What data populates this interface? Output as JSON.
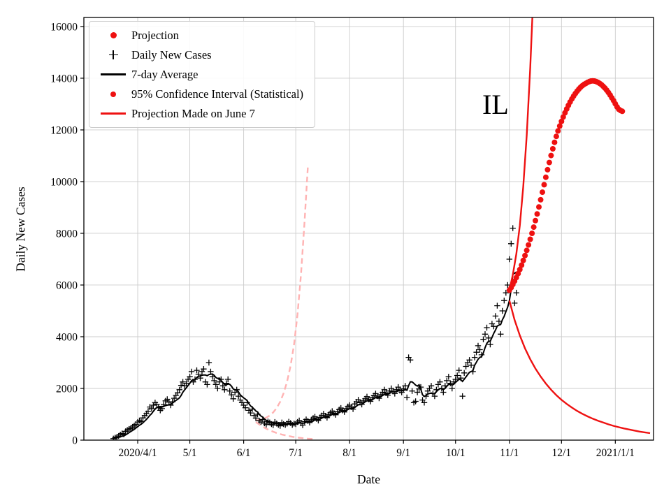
{
  "chart_data": {
    "type": "line",
    "title": "",
    "xlabel": "Date",
    "ylabel": "Daily New Cases",
    "annotation": "IL",
    "grid": true,
    "legend_position": "upper left",
    "xlim": [
      "2020-03-01",
      "2021-01-23"
    ],
    "ylim": [
      0,
      16350
    ],
    "x_ticks": [
      {
        "date": "2020-04-01",
        "label": "2020/4/1"
      },
      {
        "date": "2020-05-01",
        "label": "5/1"
      },
      {
        "date": "2020-06-01",
        "label": "6/1"
      },
      {
        "date": "2020-07-01",
        "label": "7/1"
      },
      {
        "date": "2020-08-01",
        "label": "8/1"
      },
      {
        "date": "2020-09-01",
        "label": "9/1"
      },
      {
        "date": "2020-10-01",
        "label": "10/1"
      },
      {
        "date": "2020-11-01",
        "label": "11/1"
      },
      {
        "date": "2020-12-01",
        "label": "12/1"
      },
      {
        "date": "2021-01-01",
        "label": "2021/1/1"
      }
    ],
    "y_ticks": [
      0,
      2000,
      4000,
      6000,
      8000,
      10000,
      12000,
      14000,
      16000
    ],
    "colors": {
      "projection": "#ee1111",
      "daily_cases": "#000000",
      "average": "#000000",
      "june_projection": "#ffb3b3",
      "grid": "#cccccc"
    },
    "legend": [
      {
        "label": "Projection",
        "marker": "red-dot-large"
      },
      {
        "label": "Daily New Cases",
        "marker": "black-plus"
      },
      {
        "label": "7-day Average",
        "marker": "black-line"
      },
      {
        "label": "95% Confidence Interval (Statistical)",
        "marker": "red-dot-small"
      },
      {
        "label": "Projection Made on June 7",
        "marker": "red-line"
      }
    ],
    "series": {
      "daily_new_cases": {
        "type": "scatter-plus",
        "start": "2020-03-18",
        "values": [
          60,
          95,
          120,
          160,
          210,
          260,
          230,
          340,
          390,
          430,
          460,
          510,
          560,
          610,
          700,
          760,
          715,
          860,
          950,
          1030,
          1120,
          1280,
          1220,
          1350,
          1450,
          1380,
          1250,
          1150,
          1220,
          1380,
          1520,
          1580,
          1470,
          1350,
          1480,
          1620,
          1730,
          1830,
          1950,
          2120,
          2250,
          2100,
          2200,
          2350,
          2450,
          2650,
          2250,
          2350,
          2700,
          2550,
          2400,
          2650,
          2750,
          2250,
          2150,
          3000,
          2650,
          2450,
          2300,
          2150,
          2000,
          2250,
          2350,
          2100,
          1950,
          2200,
          2350,
          1900,
          1750,
          1600,
          1850,
          1950,
          1700,
          1550,
          1450,
          1350,
          1250,
          1450,
          1150,
          1050,
          1200,
          950,
          850,
          1000,
          750,
          700,
          800,
          650,
          600,
          720,
          680,
          620,
          580,
          700,
          640,
          590,
          550,
          680,
          620,
          590,
          640,
          710,
          660,
          590,
          640,
          620,
          700,
          760,
          650,
          580,
          720,
          800,
          740,
          680,
          790,
          850,
          900,
          820,
          760,
          880,
          950,
          1020,
          940,
          870,
          990,
          1060,
          1120,
          1040,
          980,
          1100,
          1180,
          1240,
          1150,
          1090,
          1220,
          1300,
          1350,
          1280,
          1200,
          1400,
          1480,
          1560,
          1450,
          1380,
          1520,
          1600,
          1680,
          1580,
          1500,
          1640,
          1720,
          1800,
          1700,
          1620,
          1760,
          1850,
          1950,
          1820,
          1740,
          1900,
          2000,
          1880,
          1800,
          1950,
          2050,
          1920,
          1850,
          1980,
          2100,
          1650,
          3200,
          3100,
          1900,
          1450,
          1500,
          1850,
          1980,
          2050,
          1550,
          1450,
          1700,
          1900,
          2000,
          2100,
          1800,
          1700,
          1950,
          2150,
          2250,
          2000,
          1850,
          2100,
          2300,
          2450,
          2200,
          2000,
          2250,
          2350,
          2500,
          2700,
          2400,
          1700,
          2600,
          2850,
          3000,
          3100,
          2900,
          2650,
          3200,
          3400,
          3650,
          3500,
          3300,
          3900,
          4100,
          4350,
          3950,
          3700,
          4500,
          4400,
          4800,
          5200,
          4600,
          4100,
          5000,
          5400,
          5700,
          6000,
          7000,
          7600,
          8200,
          5300,
          5700
        ]
      },
      "seven_day_average": {
        "type": "line",
        "derived_from": "daily_new_cases",
        "window": 7
      },
      "projection": {
        "type": "scatter-dot",
        "start": "2020-11-01",
        "values": [
          5800,
          5900,
          6020,
          6150,
          6290,
          6440,
          6600,
          6770,
          6950,
          7140,
          7340,
          7550,
          7770,
          8000,
          8240,
          8490,
          8750,
          9020,
          9300,
          9590,
          9880,
          10170,
          10460,
          10740,
          11010,
          11270,
          11520,
          11750,
          11960,
          12150,
          12330,
          12500,
          12660,
          12810,
          12950,
          13080,
          13200,
          13310,
          13410,
          13500,
          13580,
          13650,
          13710,
          13760,
          13800,
          13840,
          13870,
          13890,
          13900,
          13890,
          13870,
          13840,
          13800,
          13750,
          13690,
          13620,
          13540,
          13450,
          13350,
          13240,
          13130,
          13010,
          12890,
          12800,
          12750,
          12720
        ]
      },
      "ci_upper": {
        "type": "line",
        "points": [
          [
            "2020-11-01",
            5800
          ],
          [
            "2020-11-03",
            6400
          ],
          [
            "2020-11-05",
            7200
          ],
          [
            "2020-11-07",
            8300
          ],
          [
            "2020-11-09",
            9800
          ],
          [
            "2020-11-11",
            11800
          ],
          [
            "2020-11-13",
            14400
          ],
          [
            "2020-11-15",
            17600
          ]
        ]
      },
      "ci_lower": {
        "type": "line",
        "points": [
          [
            "2020-11-01",
            5400
          ],
          [
            "2020-11-04",
            4650
          ],
          [
            "2020-11-07",
            4050
          ],
          [
            "2020-11-10",
            3550
          ],
          [
            "2020-11-13",
            3130
          ],
          [
            "2020-11-16",
            2770
          ],
          [
            "2020-11-19",
            2460
          ],
          [
            "2020-11-22",
            2190
          ],
          [
            "2020-11-25",
            1950
          ],
          [
            "2020-11-28",
            1740
          ],
          [
            "2020-12-01",
            1560
          ],
          [
            "2020-12-04",
            1400
          ],
          [
            "2020-12-07",
            1260
          ],
          [
            "2020-12-10",
            1130
          ],
          [
            "2020-12-13",
            1020
          ],
          [
            "2020-12-16",
            920
          ],
          [
            "2020-12-19",
            830
          ],
          [
            "2020-12-22",
            750
          ],
          [
            "2020-12-25",
            680
          ],
          [
            "2020-12-28",
            610
          ],
          [
            "2020-12-31",
            550
          ],
          [
            "2021-01-03",
            500
          ],
          [
            "2021-01-06",
            450
          ],
          [
            "2021-01-09",
            410
          ],
          [
            "2021-01-12",
            370
          ],
          [
            "2021-01-15",
            330
          ],
          [
            "2021-01-18",
            300
          ],
          [
            "2021-01-21",
            270
          ]
        ]
      },
      "june_projection_upper": {
        "type": "dashed-line",
        "points": [
          [
            "2020-06-08",
            760
          ],
          [
            "2020-06-10",
            780
          ],
          [
            "2020-06-12",
            815
          ],
          [
            "2020-06-14",
            870
          ],
          [
            "2020-06-16",
            950
          ],
          [
            "2020-06-18",
            1070
          ],
          [
            "2020-06-20",
            1240
          ],
          [
            "2020-06-22",
            1480
          ],
          [
            "2020-06-24",
            1810
          ],
          [
            "2020-06-26",
            2260
          ],
          [
            "2020-06-28",
            2870
          ],
          [
            "2020-06-30",
            3700
          ],
          [
            "2020-07-02",
            4850
          ],
          [
            "2020-07-04",
            6400
          ],
          [
            "2020-07-06",
            8400
          ],
          [
            "2020-07-08",
            10600
          ]
        ]
      },
      "june_projection_lower": {
        "type": "dashed-line",
        "points": [
          [
            "2020-06-08",
            700
          ],
          [
            "2020-06-11",
            560
          ],
          [
            "2020-06-14",
            440
          ],
          [
            "2020-06-17",
            350
          ],
          [
            "2020-06-20",
            275
          ],
          [
            "2020-06-23",
            215
          ],
          [
            "2020-06-26",
            170
          ],
          [
            "2020-06-29",
            130
          ],
          [
            "2020-07-02",
            100
          ],
          [
            "2020-07-05",
            75
          ],
          [
            "2020-07-08",
            55
          ],
          [
            "2020-07-11",
            45
          ]
        ]
      }
    }
  }
}
